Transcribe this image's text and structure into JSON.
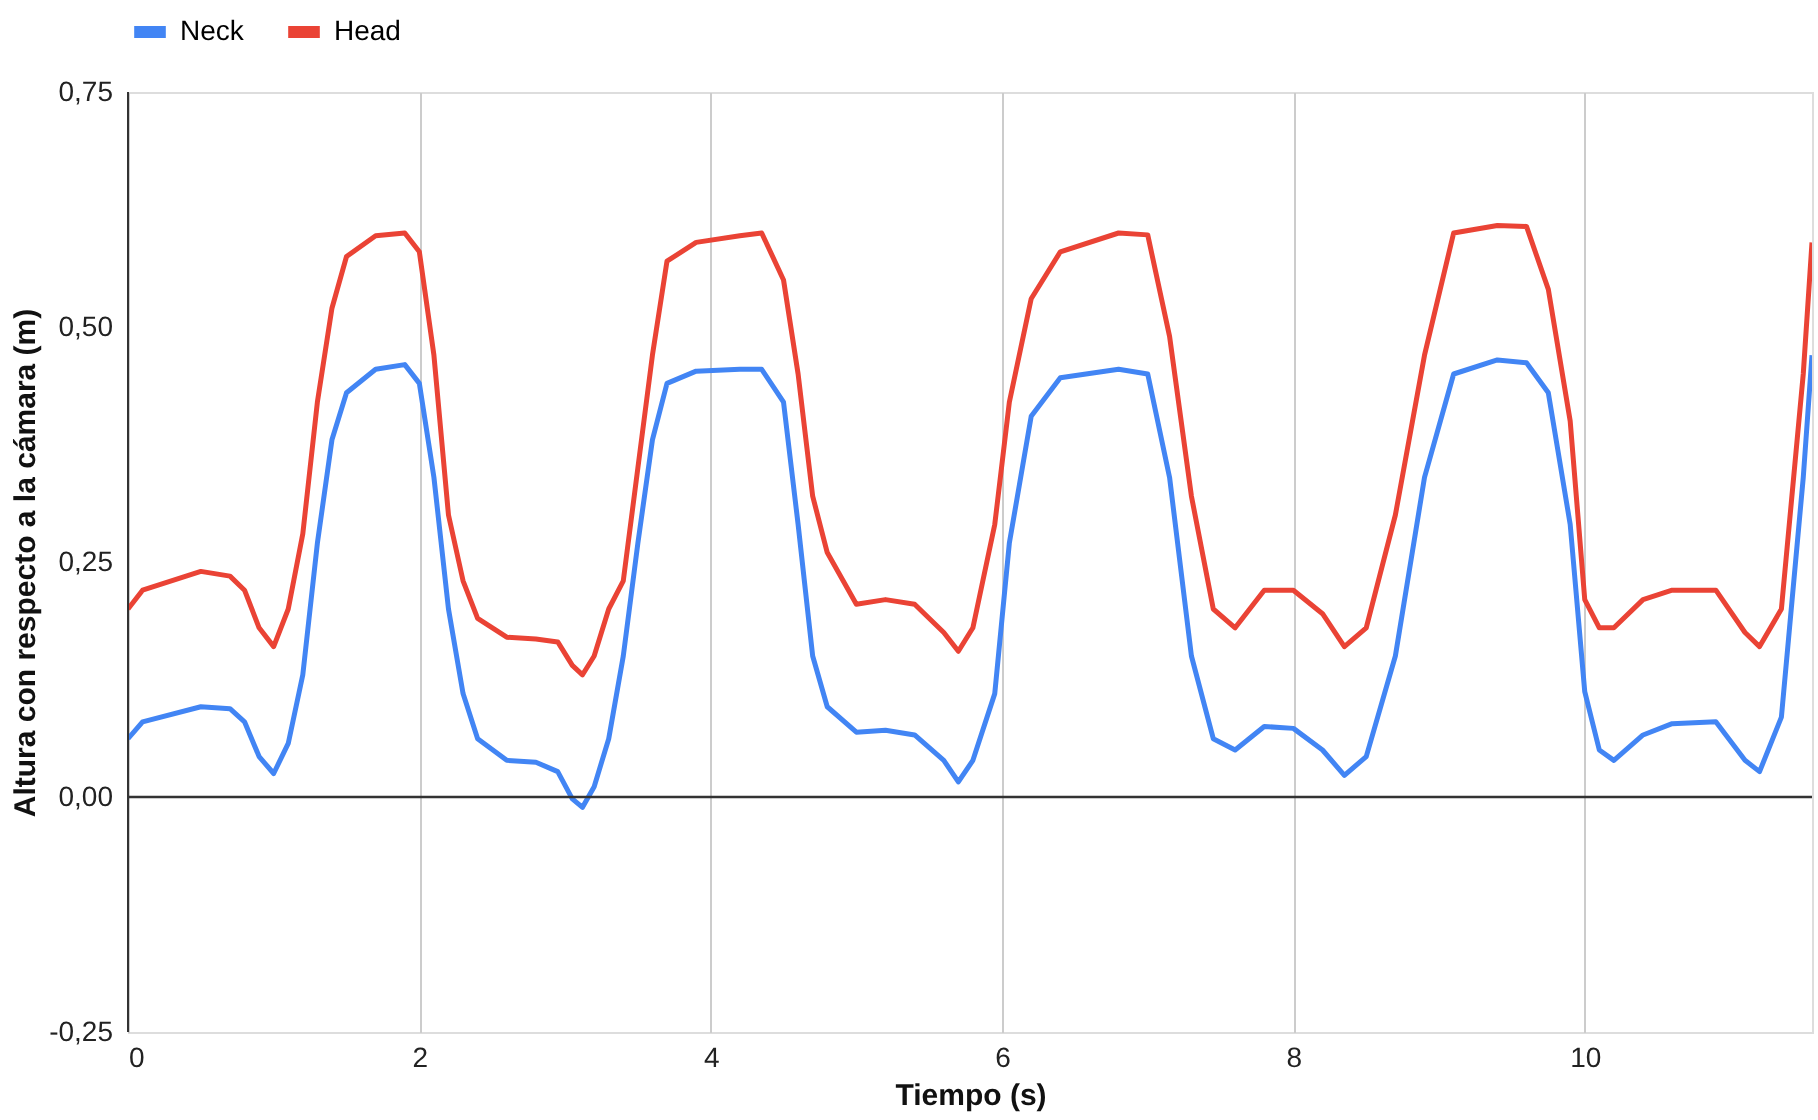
{
  "chart_data": {
    "type": "line",
    "xlabel": "Tiempo (s)",
    "ylabel": "Altura con respecto a la cámara (m)",
    "xlim": [
      0,
      11.56
    ],
    "xticks": [
      0,
      2,
      4,
      6,
      8,
      10
    ],
    "ylim": [
      -0.25,
      0.75
    ],
    "yticks": [
      {
        "value": -0.25,
        "label": "-0,25"
      },
      {
        "value": 0,
        "label": "0,00"
      },
      {
        "value": 0.25,
        "label": "0,25"
      },
      {
        "value": 0.5,
        "label": "0,50"
      },
      {
        "value": 0.75,
        "label": "0,75"
      }
    ],
    "grid": "x",
    "legend": "top",
    "line_style": "solid",
    "marker": "none",
    "ref_lines": [
      {
        "axis": "y",
        "value": 0,
        "color": "#333333"
      }
    ],
    "x": [
      0,
      0.1,
      0.5,
      0.7,
      0.8,
      0.9,
      1.0,
      1.1,
      1.2,
      1.3,
      1.4,
      1.5,
      1.7,
      1.9,
      2.0,
      2.1,
      2.2,
      2.3,
      2.4,
      2.6,
      2.8,
      2.95,
      3.05,
      3.12,
      3.2,
      3.3,
      3.4,
      3.5,
      3.6,
      3.7,
      3.9,
      4.2,
      4.35,
      4.5,
      4.6,
      4.7,
      4.8,
      5.0,
      5.2,
      5.4,
      5.6,
      5.7,
      5.8,
      5.95,
      6.05,
      6.2,
      6.4,
      6.8,
      7.0,
      7.15,
      7.3,
      7.45,
      7.6,
      7.8,
      8.0,
      8.2,
      8.35,
      8.5,
      8.7,
      8.9,
      9.1,
      9.4,
      9.6,
      9.75,
      9.9,
      10.0,
      10.1,
      10.2,
      10.4,
      10.6,
      10.9,
      11.1,
      11.2,
      11.35,
      11.5,
      11.56
    ],
    "series": [
      {
        "name": "Neck",
        "color": "#4285f4",
        "values": [
          0.062,
          0.08,
          0.096,
          0.094,
          0.08,
          0.043,
          0.025,
          0.057,
          0.13,
          0.27,
          0.38,
          0.43,
          0.455,
          0.46,
          0.44,
          0.34,
          0.2,
          0.11,
          0.062,
          0.039,
          0.037,
          0.027,
          -0.002,
          -0.011,
          0.011,
          0.062,
          0.15,
          0.27,
          0.38,
          0.44,
          0.453,
          0.455,
          0.455,
          0.42,
          0.29,
          0.15,
          0.096,
          0.069,
          0.071,
          0.066,
          0.039,
          0.016,
          0.039,
          0.11,
          0.27,
          0.405,
          0.446,
          0.455,
          0.45,
          0.34,
          0.15,
          0.062,
          0.05,
          0.075,
          0.073,
          0.05,
          0.023,
          0.043,
          0.15,
          0.34,
          0.45,
          0.465,
          0.462,
          0.43,
          0.29,
          0.112,
          0.05,
          0.039,
          0.066,
          0.078,
          0.08,
          0.039,
          0.027,
          0.085,
          0.34,
          0.47
        ]
      },
      {
        "name": "Head",
        "color": "#ea4335",
        "values": [
          0.2,
          0.22,
          0.24,
          0.235,
          0.22,
          0.18,
          0.16,
          0.2,
          0.28,
          0.42,
          0.52,
          0.575,
          0.597,
          0.6,
          0.58,
          0.47,
          0.3,
          0.23,
          0.19,
          0.17,
          0.168,
          0.165,
          0.14,
          0.13,
          0.15,
          0.2,
          0.23,
          0.35,
          0.47,
          0.57,
          0.59,
          0.597,
          0.6,
          0.55,
          0.45,
          0.32,
          0.26,
          0.205,
          0.21,
          0.205,
          0.175,
          0.155,
          0.18,
          0.29,
          0.42,
          0.53,
          0.58,
          0.6,
          0.598,
          0.49,
          0.32,
          0.2,
          0.18,
          0.22,
          0.22,
          0.195,
          0.16,
          0.18,
          0.3,
          0.47,
          0.6,
          0.608,
          0.607,
          0.54,
          0.4,
          0.21,
          0.18,
          0.18,
          0.21,
          0.22,
          0.22,
          0.175,
          0.16,
          0.2,
          0.45,
          0.59
        ]
      }
    ]
  }
}
